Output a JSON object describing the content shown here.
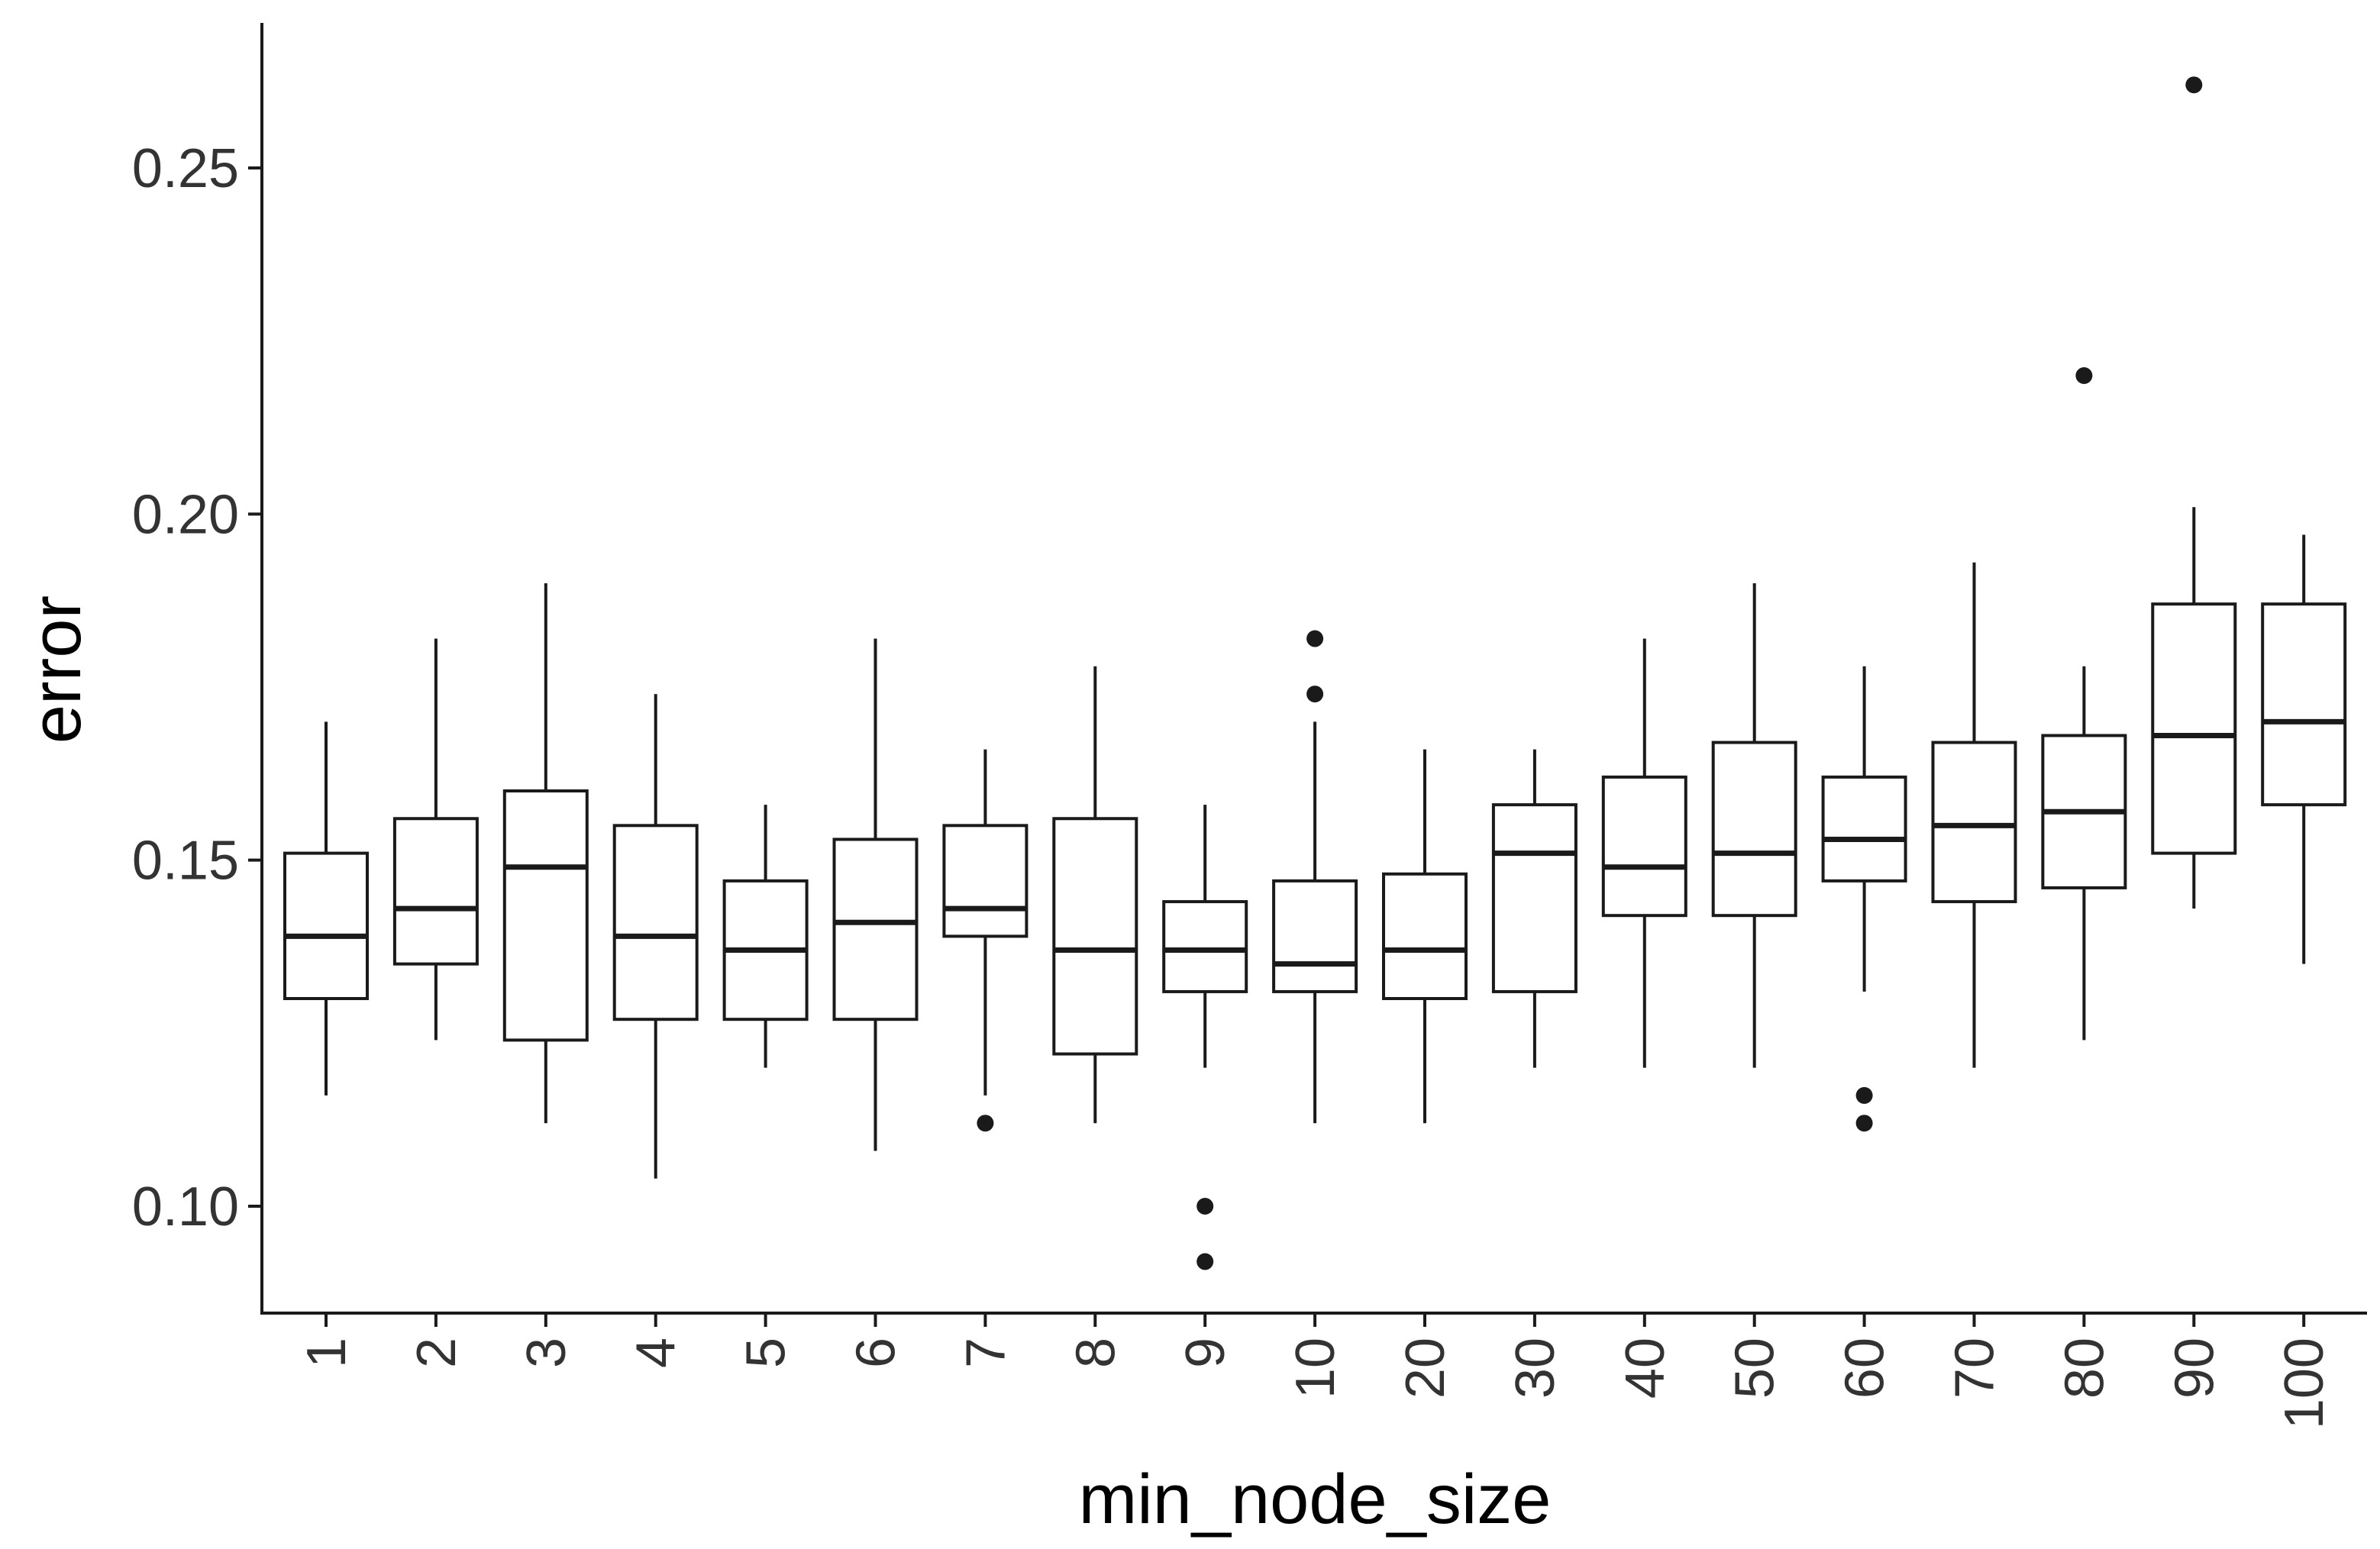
{
  "chart_data": {
    "type": "boxplot",
    "xlabel": "min_node_size",
    "ylabel": "error",
    "ylim": [
      0.085,
      0.272
    ],
    "yticks": [
      0.1,
      0.15,
      0.2,
      0.25
    ],
    "ytick_labels": [
      "0.10",
      "0.15",
      "0.20",
      "0.25"
    ],
    "grid": false,
    "legend": "none",
    "categories": [
      "1",
      "2",
      "3",
      "4",
      "5",
      "6",
      "7",
      "8",
      "9",
      "10",
      "20",
      "30",
      "40",
      "50",
      "60",
      "70",
      "80",
      "90",
      "100"
    ],
    "boxes": [
      {
        "category": "1",
        "low": 0.116,
        "q1": 0.13,
        "median": 0.139,
        "q3": 0.151,
        "high": 0.17,
        "outliers": []
      },
      {
        "category": "2",
        "low": 0.124,
        "q1": 0.135,
        "median": 0.143,
        "q3": 0.156,
        "high": 0.182,
        "outliers": []
      },
      {
        "category": "3",
        "low": 0.112,
        "q1": 0.124,
        "median": 0.149,
        "q3": 0.16,
        "high": 0.19,
        "outliers": []
      },
      {
        "category": "4",
        "low": 0.104,
        "q1": 0.127,
        "median": 0.139,
        "q3": 0.155,
        "high": 0.174,
        "outliers": []
      },
      {
        "category": "5",
        "low": 0.12,
        "q1": 0.127,
        "median": 0.137,
        "q3": 0.147,
        "high": 0.158,
        "outliers": []
      },
      {
        "category": "6",
        "low": 0.108,
        "q1": 0.127,
        "median": 0.141,
        "q3": 0.153,
        "high": 0.182,
        "outliers": []
      },
      {
        "category": "7",
        "low": 0.116,
        "q1": 0.139,
        "median": 0.143,
        "q3": 0.155,
        "high": 0.166,
        "outliers": [
          0.112
        ]
      },
      {
        "category": "8",
        "low": 0.112,
        "q1": 0.122,
        "median": 0.137,
        "q3": 0.156,
        "high": 0.178,
        "outliers": []
      },
      {
        "category": "9",
        "low": 0.12,
        "q1": 0.131,
        "median": 0.137,
        "q3": 0.144,
        "high": 0.158,
        "outliers": [
          0.1,
          0.092
        ]
      },
      {
        "category": "10",
        "low": 0.112,
        "q1": 0.131,
        "median": 0.135,
        "q3": 0.147,
        "high": 0.17,
        "outliers": [
          0.182,
          0.174
        ]
      },
      {
        "category": "20",
        "low": 0.112,
        "q1": 0.13,
        "median": 0.137,
        "q3": 0.148,
        "high": 0.166,
        "outliers": []
      },
      {
        "category": "30",
        "low": 0.12,
        "q1": 0.131,
        "median": 0.151,
        "q3": 0.158,
        "high": 0.166,
        "outliers": []
      },
      {
        "category": "40",
        "low": 0.12,
        "q1": 0.142,
        "median": 0.149,
        "q3": 0.162,
        "high": 0.182,
        "outliers": []
      },
      {
        "category": "50",
        "low": 0.12,
        "q1": 0.142,
        "median": 0.151,
        "q3": 0.167,
        "high": 0.19,
        "outliers": []
      },
      {
        "category": "60",
        "low": 0.131,
        "q1": 0.147,
        "median": 0.153,
        "q3": 0.162,
        "high": 0.178,
        "outliers": [
          0.116,
          0.112
        ]
      },
      {
        "category": "70",
        "low": 0.12,
        "q1": 0.144,
        "median": 0.155,
        "q3": 0.167,
        "high": 0.193,
        "outliers": []
      },
      {
        "category": "80",
        "low": 0.124,
        "q1": 0.146,
        "median": 0.157,
        "q3": 0.168,
        "high": 0.178,
        "outliers": [
          0.22
        ]
      },
      {
        "category": "90",
        "low": 0.143,
        "q1": 0.151,
        "median": 0.168,
        "q3": 0.187,
        "high": 0.201,
        "outliers": [
          0.262
        ]
      },
      {
        "category": "100",
        "low": 0.135,
        "q1": 0.158,
        "median": 0.17,
        "q3": 0.187,
        "high": 0.197,
        "outliers": []
      }
    ]
  }
}
